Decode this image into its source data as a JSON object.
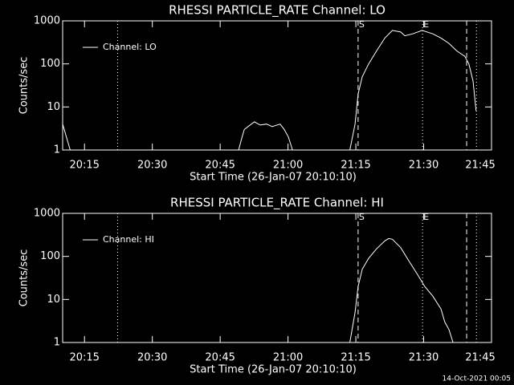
{
  "chart_data": [
    {
      "type": "line",
      "title": "RHESSI PARTICLE_RATE Channel: LO",
      "xlabel": "Start Time (26-Jan-07 20:10:10)",
      "ylabel": "Counts/sec",
      "xlim": [
        "20:10:10",
        "21:45"
      ],
      "xticks": [
        "20:15",
        "20:30",
        "20:45",
        "21:00",
        "21:15",
        "21:30",
        "21:45"
      ],
      "ylim": [
        1,
        1000
      ],
      "yticks": [
        1,
        10,
        100,
        1000
      ],
      "log_y": true,
      "grid": false,
      "legend": "upper left",
      "vlines": [
        {
          "x": "20:22:20",
          "style": "dotted"
        },
        {
          "x": "21:15:30",
          "style": "dashed",
          "label": "S"
        },
        {
          "x": "21:29:45",
          "style": "dotted",
          "label": "E"
        },
        {
          "x": "21:39:30",
          "style": "dashed"
        },
        {
          "x": "21:41:40",
          "style": "dotted"
        }
      ],
      "series": [
        {
          "name": "Channel: LO",
          "color": "#ffffff",
          "x": [
            "20:10:10",
            "20:11:50",
            "20:30:00",
            "20:49:05",
            "20:49:50",
            "20:50:20",
            "20:51:10",
            "20:52:35",
            "20:53:50",
            "20:55:15",
            "20:56:30",
            "20:58:15",
            "20:59:10",
            "21:00:05",
            "21:01:00",
            "21:07:00",
            "21:13:40",
            "21:14:50",
            "21:15:30",
            "21:16:25",
            "21:17:50",
            "21:19:35",
            "21:21:25",
            "21:23:05",
            "21:24:55",
            "21:25:50",
            "21:27:35",
            "21:29:40",
            "21:32:00",
            "21:33:50",
            "21:35:35",
            "21:37:20",
            "21:39:05",
            "21:40:00",
            "21:40:55",
            "21:41:35"
          ],
          "values": [
            4,
            1,
            null,
            1,
            2,
            3,
            3.5,
            4.5,
            3.8,
            4,
            3.5,
            4,
            3,
            2,
            1,
            null,
            1,
            4,
            20,
            50,
            100,
            200,
            400,
            600,
            550,
            450,
            500,
            600,
            500,
            400,
            300,
            200,
            150,
            100,
            40,
            8
          ]
        }
      ]
    },
    {
      "type": "line",
      "title": "RHESSI PARTICLE_RATE Channel: HI",
      "xlabel": "Start Time (26-Jan-07 20:10:10)",
      "ylabel": "Counts/sec",
      "xlim": [
        "20:10:10",
        "21:45"
      ],
      "xticks": [
        "20:15",
        "20:30",
        "20:45",
        "21:00",
        "21:15",
        "21:30",
        "21:45"
      ],
      "ylim": [
        1,
        1000
      ],
      "yticks": [
        1,
        10,
        100,
        1000
      ],
      "log_y": true,
      "grid": false,
      "legend": "upper left",
      "vlines": [
        {
          "x": "20:22:20",
          "style": "dotted"
        },
        {
          "x": "21:15:30",
          "style": "dashed",
          "label": "S"
        },
        {
          "x": "21:29:45",
          "style": "dotted",
          "label": "E"
        },
        {
          "x": "21:39:30",
          "style": "dashed"
        },
        {
          "x": "21:41:40",
          "style": "dotted"
        }
      ],
      "series": [
        {
          "name": "Channel: HI",
          "color": "#ffffff",
          "x": [
            "21:13:40",
            "21:14:50",
            "21:15:30",
            "21:16:25",
            "21:17:50",
            "21:19:35",
            "21:21:25",
            "21:22:15",
            "21:23:05",
            "21:24:55",
            "21:26:40",
            "21:28:30",
            "21:30:15",
            "21:32:00",
            "21:33:50",
            "21:34:40",
            "21:35:35",
            "21:36:30"
          ],
          "values": [
            1,
            5,
            20,
            50,
            90,
            150,
            230,
            260,
            250,
            160,
            80,
            40,
            20,
            12,
            6,
            3,
            2,
            1
          ]
        }
      ]
    }
  ],
  "footer": "14-Oct-2021 00:05"
}
